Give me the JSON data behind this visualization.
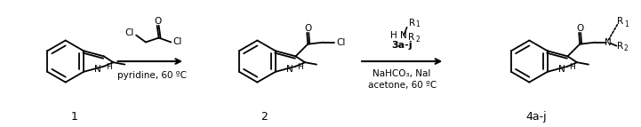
{
  "bg_color": "#ffffff",
  "fig_width": 7.21,
  "fig_height": 1.43,
  "dpi": 100,
  "compound1_label": "1",
  "compound2_label": "2",
  "compound4_label": "4a-j",
  "reagent1_above": "Cl",
  "reagent1_below": "pyridine, 60 ºC",
  "reagent2_above1": "R",
  "reagent2_above2": "1",
  "reagent2_H": "H",
  "reagent2_N": "N",
  "reagent2_R2": "R",
  "reagent2_2": "2",
  "reagent2_label": "3a-j",
  "reagent2_below1": "NaHCO",
  "reagent2_below1b": "3",
  "reagent2_below1c": ", NaI",
  "reagent2_below2": "acetone, 60 ºC",
  "O_label": "O",
  "Cl_label": "Cl",
  "NH_N": "N",
  "NH_H": "H",
  "N_label": "N",
  "R1_label": "R",
  "R2_label": "R"
}
